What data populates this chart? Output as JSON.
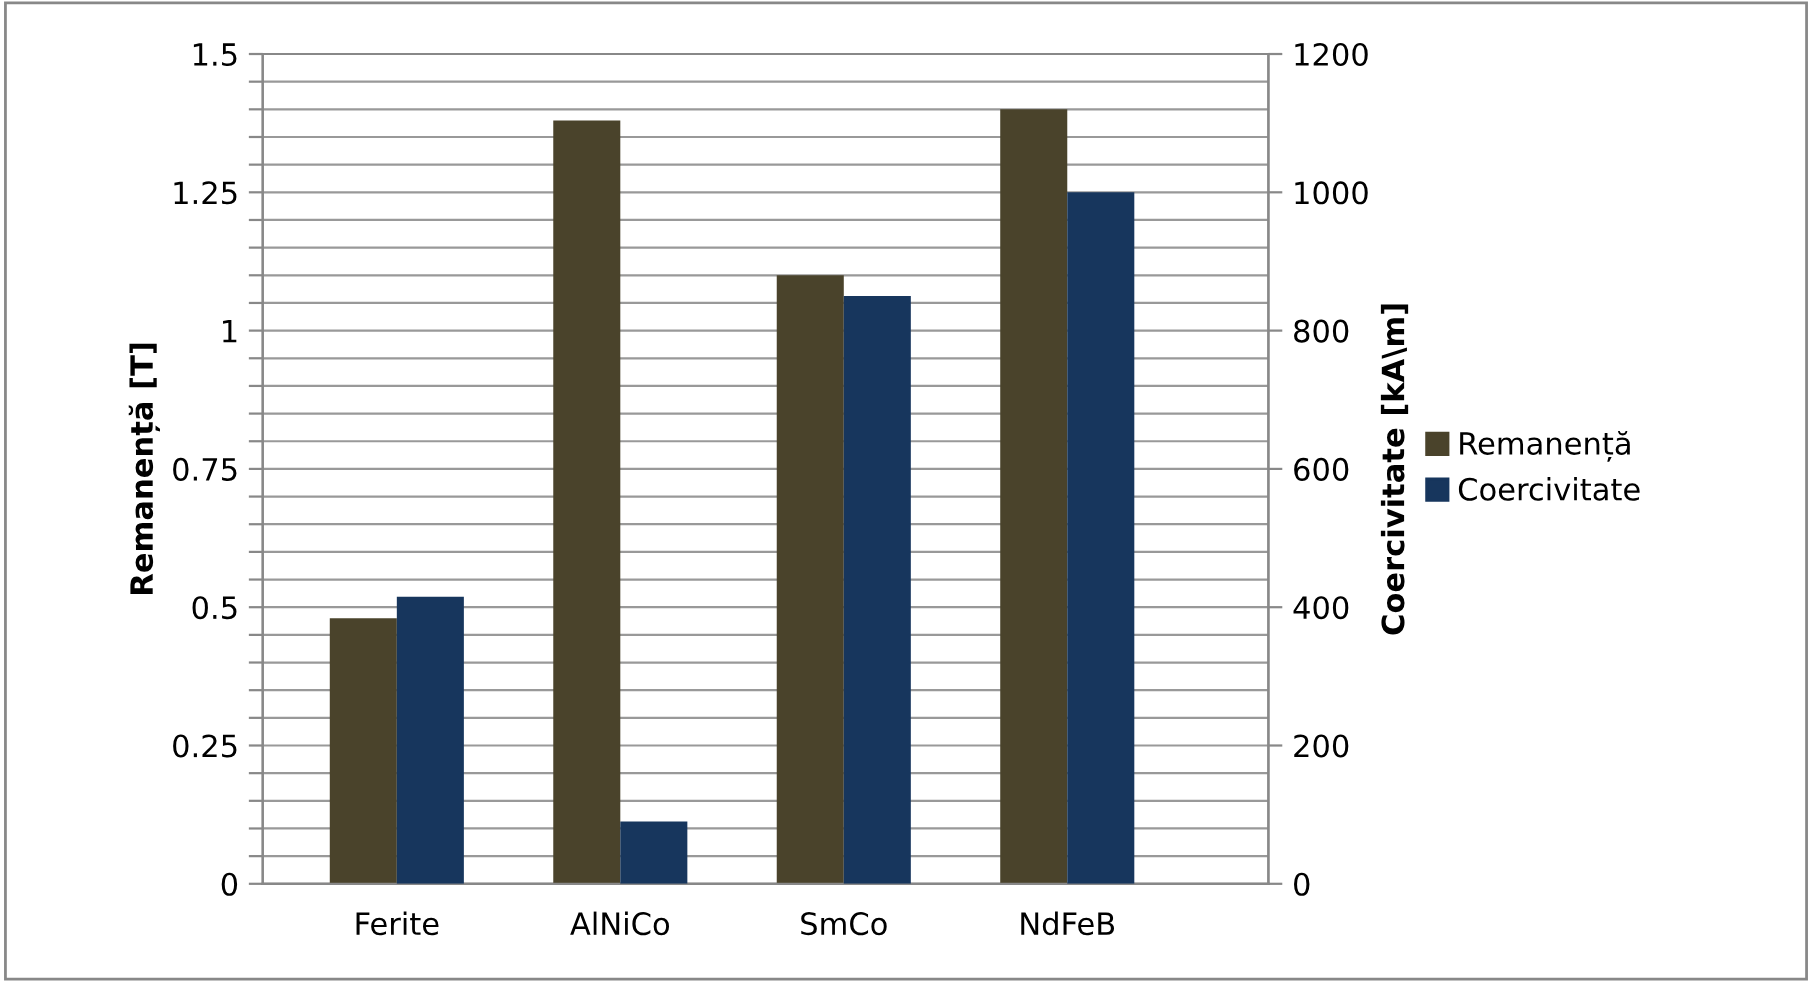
{
  "chart_data": {
    "type": "bar",
    "categories": [
      "Ferite",
      "AlNiCo",
      "SmCo",
      "NdFeB"
    ],
    "ylabel": "Remanență [T]",
    "y2label": "Coercivitate [kA\\m]",
    "series": [
      {
        "name": "Remanență",
        "color": "#4a432b",
        "values": [
          0.48,
          1.38,
          1.1,
          1.4
        ]
      },
      {
        "name": "Coercivitate",
        "color": "#17365d",
        "values": [
          415,
          90,
          850,
          1000
        ],
        "axis": "y2"
      }
    ],
    "ylim": [
      0,
      1.5
    ],
    "yticks": [
      0,
      {
        "value": 0.05,
        "label": null
      },
      {
        "value": 0.1,
        "label": null
      },
      {
        "value": 0.15,
        "label": null
      },
      {
        "value": 0.2,
        "label": null
      },
      0.25,
      {
        "value": 0.3,
        "label": null
      },
      {
        "value": 0.35,
        "label": null
      },
      {
        "value": 0.4,
        "label": null
      },
      {
        "value": 0.45,
        "label": null
      },
      0.5,
      {
        "value": 0.55,
        "label": null
      },
      {
        "value": 0.6,
        "label": null
      },
      {
        "value": 0.65,
        "label": null
      },
      {
        "value": 0.7,
        "label": null
      },
      0.75,
      {
        "value": 0.8,
        "label": null
      },
      {
        "value": 0.85,
        "label": null
      },
      {
        "value": 0.9,
        "label": null
      },
      {
        "value": 0.95,
        "label": null
      },
      1,
      {
        "value": 1.05,
        "label": null
      },
      {
        "value": 1.1,
        "label": null
      },
      {
        "value": 1.15,
        "label": null
      },
      {
        "value": 1.2,
        "label": null
      },
      1.25,
      {
        "value": 1.3,
        "label": null
      },
      {
        "value": 1.35,
        "label": null
      },
      {
        "value": 1.4,
        "label": null
      },
      {
        "value": 1.45,
        "label": null
      },
      1.5
    ],
    "y2lim": [
      0,
      1200
    ],
    "y2ticks": [
      0,
      200,
      400,
      600,
      800,
      1000,
      1200
    ],
    "grid": "y",
    "legend": "right"
  }
}
